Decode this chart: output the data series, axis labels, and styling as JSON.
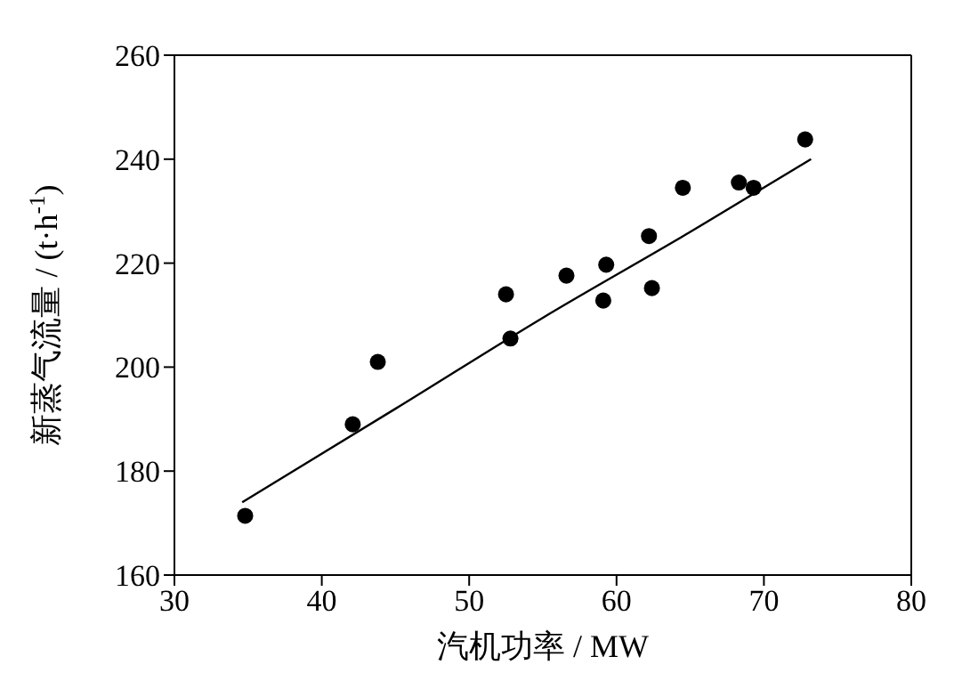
{
  "chart_data": {
    "type": "scatter",
    "xlabel": "汽机功率 / MW",
    "ylabel": "新蒸气流量 / (t·h$^{-1}$)",
    "xlim": [
      30,
      80
    ],
    "xticks": [
      30,
      40,
      50,
      60,
      70,
      80
    ],
    "ylim": [
      160,
      260
    ],
    "yticks": [
      160,
      180,
      200,
      220,
      240,
      260
    ],
    "marker": "circle",
    "series": [
      {
        "color": "#000000",
        "x": [
          34.8,
          42.1,
          43.8,
          52.5,
          52.8,
          56.6,
          59.1,
          59.3,
          62.2,
          62.4,
          64.5,
          68.3,
          69.3,
          72.8
        ],
        "values": [
          171.4,
          189,
          201,
          214,
          205.5,
          217.6,
          212.8,
          219.7,
          225.2,
          215.2,
          234.5,
          235.5,
          234.5,
          243.8
        ]
      },
      {
        "type": "line",
        "color": "#000000",
        "marker": "none",
        "line_style": "solid",
        "x": [
          34.6,
          45,
          55,
          65,
          73.2
        ],
        "values": [
          174,
          192,
          209.5,
          226,
          240
        ]
      }
    ]
  }
}
